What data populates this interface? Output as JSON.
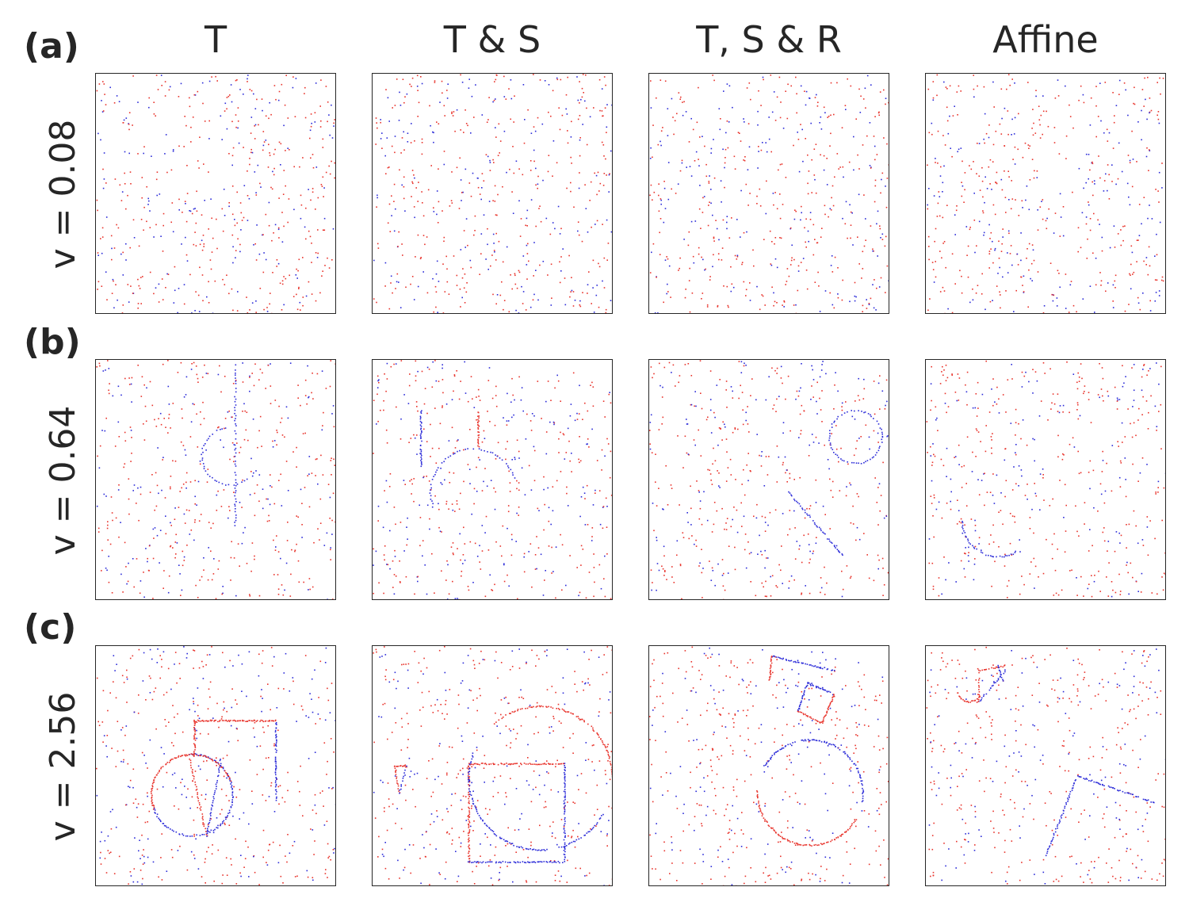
{
  "columns": [
    "T",
    "T & S",
    "T, S & R",
    "Affine"
  ],
  "rows": [
    {
      "tag": "(a)",
      "label": "v = 0.08",
      "v": 0.08
    },
    {
      "tag": "(b)",
      "label": "v = 0.64",
      "v": 0.64
    },
    {
      "tag": "(c)",
      "label": "v = 2.56",
      "v": 2.56
    }
  ],
  "colors": {
    "positive": "#e8332b",
    "negative": "#2b2bd8",
    "text": "#262626"
  },
  "chart_data": {
    "type": "scatter",
    "description_note": "",
    "grid": false,
    "xlim": [
      0,
      1
    ],
    "ylim": [
      0,
      1
    ],
    "panels": [
      {
        "row": 0,
        "col": 0,
        "noise_points": 520,
        "shapes": []
      },
      {
        "row": 0,
        "col": 1,
        "noise_points": 520,
        "shapes": []
      },
      {
        "row": 0,
        "col": 2,
        "noise_points": 520,
        "shapes": []
      },
      {
        "row": 0,
        "col": 3,
        "noise_points": 520,
        "shapes": []
      },
      {
        "row": 1,
        "col": 0,
        "noise_points": 480,
        "shapes": [
          {
            "kind": "line",
            "x1": 0.58,
            "y1": 0.96,
            "x2": 0.58,
            "y2": 0.3,
            "pol": "neg",
            "density": 60
          },
          {
            "kind": "arc",
            "cx": 0.56,
            "cy": 0.6,
            "r": 0.12,
            "a0": 100,
            "a1": 330,
            "pol": "neg",
            "density": 40
          }
        ]
      },
      {
        "row": 1,
        "col": 1,
        "noise_points": 480,
        "shapes": [
          {
            "kind": "line",
            "x1": 0.2,
            "y1": 0.79,
            "x2": 0.2,
            "y2": 0.56,
            "pol": "neg",
            "density": 40
          },
          {
            "kind": "line",
            "x1": 0.44,
            "y1": 0.79,
            "x2": 0.44,
            "y2": 0.64,
            "pol": "pos",
            "density": 30
          },
          {
            "kind": "arc",
            "cx": 0.42,
            "cy": 0.45,
            "r": 0.18,
            "a0": 20,
            "a1": 200,
            "pol": "neg",
            "density": 50
          }
        ]
      },
      {
        "row": 1,
        "col": 2,
        "noise_points": 480,
        "shapes": [
          {
            "kind": "arc",
            "cx": 0.86,
            "cy": 0.68,
            "r": 0.11,
            "a0": 0,
            "a1": 360,
            "pol": "neg",
            "density": 70
          },
          {
            "kind": "line",
            "x1": 0.58,
            "y1": 0.45,
            "x2": 0.81,
            "y2": 0.18,
            "pol": "neg",
            "density": 50
          }
        ]
      },
      {
        "row": 1,
        "col": 3,
        "noise_points": 480,
        "shapes": [
          {
            "kind": "arc",
            "cx": 0.3,
            "cy": 0.33,
            "r": 0.15,
            "a0": 180,
            "a1": 300,
            "pol": "neg",
            "density": 40
          }
        ]
      },
      {
        "row": 2,
        "col": 0,
        "noise_points": 460,
        "shapes": [
          {
            "kind": "arc",
            "cx": 0.4,
            "cy": 0.38,
            "r": 0.17,
            "a0": 90,
            "a1": 200,
            "pol": "pos",
            "density": 60
          },
          {
            "kind": "arc",
            "cx": 0.4,
            "cy": 0.38,
            "r": 0.17,
            "a0": 200,
            "a1": 450,
            "pol": "neg",
            "density": 110
          },
          {
            "kind": "arc",
            "cx": 0.4,
            "cy": 0.38,
            "r": 0.17,
            "a0": 20,
            "a1": 90,
            "pol": "pos",
            "density": 30
          },
          {
            "kind": "line",
            "x1": 0.41,
            "y1": 0.69,
            "x2": 0.75,
            "y2": 0.69,
            "pol": "pos",
            "density": 70
          },
          {
            "kind": "line",
            "x1": 0.75,
            "y1": 0.69,
            "x2": 0.75,
            "y2": 0.36,
            "pol": "neg",
            "density": 60
          },
          {
            "kind": "line",
            "x1": 0.41,
            "y1": 0.69,
            "x2": 0.41,
            "y2": 0.54,
            "pol": "pos",
            "density": 30
          },
          {
            "kind": "line",
            "x1": 0.39,
            "y1": 0.53,
            "x2": 0.46,
            "y2": 0.21,
            "pol": "pos",
            "density": 40
          },
          {
            "kind": "line",
            "x1": 0.46,
            "y1": 0.21,
            "x2": 0.52,
            "y2": 0.53,
            "pol": "neg",
            "density": 40
          }
        ]
      },
      {
        "row": 2,
        "col": 1,
        "noise_points": 460,
        "shapes": [
          {
            "kind": "line",
            "x1": 0.4,
            "y1": 0.51,
            "x2": 0.8,
            "y2": 0.51,
            "pol": "pos",
            "density": 70
          },
          {
            "kind": "line",
            "x1": 0.4,
            "y1": 0.51,
            "x2": 0.4,
            "y2": 0.1,
            "pol": "pos",
            "density": 70
          },
          {
            "kind": "line",
            "x1": 0.4,
            "y1": 0.1,
            "x2": 0.8,
            "y2": 0.1,
            "pol": "neg",
            "density": 70
          },
          {
            "kind": "line",
            "x1": 0.8,
            "y1": 0.1,
            "x2": 0.8,
            "y2": 0.51,
            "pol": "neg",
            "density": 70
          },
          {
            "kind": "arc",
            "cx": 0.7,
            "cy": 0.45,
            "r": 0.3,
            "a0": 0,
            "a1": 90,
            "pol": "pos",
            "density": 70
          },
          {
            "kind": "arc",
            "cx": 0.7,
            "cy": 0.45,
            "r": 0.3,
            "a0": 90,
            "a1": 130,
            "pol": "pos",
            "density": 30
          },
          {
            "kind": "arc",
            "cx": 0.7,
            "cy": 0.45,
            "r": 0.3,
            "a0": 160,
            "a1": 275,
            "pol": "neg",
            "density": 90
          },
          {
            "kind": "arc",
            "cx": 0.7,
            "cy": 0.45,
            "r": 0.3,
            "a0": 285,
            "a1": 330,
            "pol": "neg",
            "density": 30
          },
          {
            "kind": "line",
            "x1": 0.09,
            "y1": 0.5,
            "x2": 0.14,
            "y2": 0.5,
            "pol": "pos",
            "density": 14
          },
          {
            "kind": "line",
            "x1": 0.09,
            "y1": 0.5,
            "x2": 0.11,
            "y2": 0.39,
            "pol": "pos",
            "density": 14
          },
          {
            "kind": "line",
            "x1": 0.14,
            "y1": 0.5,
            "x2": 0.11,
            "y2": 0.39,
            "pol": "neg",
            "density": 14
          }
        ]
      },
      {
        "row": 2,
        "col": 2,
        "noise_points": 460,
        "shapes": [
          {
            "kind": "line",
            "x1": 0.51,
            "y1": 0.96,
            "x2": 0.77,
            "y2": 0.9,
            "pol": "neg",
            "density": 50
          },
          {
            "kind": "line",
            "x1": 0.51,
            "y1": 0.96,
            "x2": 0.5,
            "y2": 0.86,
            "pol": "pos",
            "density": 20
          },
          {
            "kind": "line",
            "x1": 0.66,
            "y1": 0.85,
            "x2": 0.77,
            "y2": 0.8,
            "pol": "neg",
            "density": 25
          },
          {
            "kind": "line",
            "x1": 0.66,
            "y1": 0.85,
            "x2": 0.62,
            "y2": 0.73,
            "pol": "neg",
            "density": 25
          },
          {
            "kind": "line",
            "x1": 0.62,
            "y1": 0.73,
            "x2": 0.72,
            "y2": 0.68,
            "pol": "pos",
            "density": 25
          },
          {
            "kind": "line",
            "x1": 0.72,
            "y1": 0.68,
            "x2": 0.77,
            "y2": 0.8,
            "pol": "pos",
            "density": 25
          },
          {
            "kind": "arc",
            "cx": 0.67,
            "cy": 0.39,
            "r": 0.22,
            "a0": -10,
            "a1": 150,
            "pol": "neg",
            "density": 110
          },
          {
            "kind": "arc",
            "cx": 0.67,
            "cy": 0.39,
            "r": 0.22,
            "a0": 180,
            "a1": 330,
            "pol": "pos",
            "density": 100
          }
        ]
      },
      {
        "row": 2,
        "col": 3,
        "noise_points": 460,
        "shapes": [
          {
            "kind": "line",
            "x1": 0.63,
            "y1": 0.46,
            "x2": 0.95,
            "y2": 0.35,
            "pol": "neg",
            "density": 60
          },
          {
            "kind": "line",
            "x1": 0.63,
            "y1": 0.46,
            "x2": 0.5,
            "y2": 0.13,
            "pol": "neg",
            "density": 50
          },
          {
            "kind": "line",
            "x1": 0.22,
            "y1": 0.77,
            "x2": 0.33,
            "y2": 0.9,
            "pol": "neg",
            "density": 25
          },
          {
            "kind": "line",
            "x1": 0.22,
            "y1": 0.77,
            "x2": 0.22,
            "y2": 0.9,
            "pol": "pos",
            "density": 14
          },
          {
            "kind": "line",
            "x1": 0.22,
            "y1": 0.9,
            "x2": 0.33,
            "y2": 0.92,
            "pol": "pos",
            "density": 18
          },
          {
            "kind": "line",
            "x1": 0.3,
            "y1": 0.92,
            "x2": 0.32,
            "y2": 0.86,
            "pol": "neg",
            "density": 12
          },
          {
            "kind": "arc",
            "cx": 0.18,
            "cy": 0.82,
            "r": 0.05,
            "a0": 180,
            "a1": 330,
            "pol": "pos",
            "density": 25
          }
        ]
      }
    ]
  }
}
